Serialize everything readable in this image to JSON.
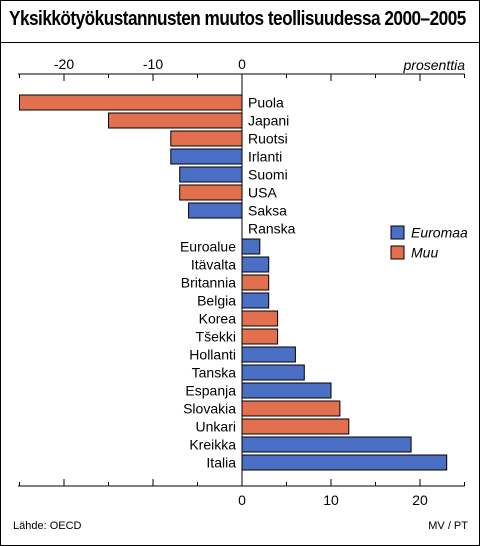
{
  "header": {
    "title": "Yksikkötyökustannusten muutos teollisuudessa 2000–2005"
  },
  "footer": {
    "source": "Lähde: OECD",
    "credit": "MV / PT"
  },
  "colors": {
    "Euromaa": "#4a6fc5",
    "Muu": "#e2704f",
    "grid": "#000000"
  },
  "chart_data": {
    "type": "bar",
    "orientation": "horizontal",
    "unit_label": "prosenttia",
    "xlim": [
      -25,
      25
    ],
    "top_ticks": [
      -20,
      -10,
      0
    ],
    "bottom_ticks": [
      0,
      10,
      20
    ],
    "legend": {
      "placement": "right",
      "entries": [
        "Euromaa",
        "Muu"
      ]
    },
    "categories": [
      "Puola",
      "Japani",
      "Ruotsi",
      "Irlanti",
      "Suomi",
      "USA",
      "Saksa",
      "Ranska",
      "Euroalue",
      "Itävalta",
      "Britannia",
      "Belgia",
      "Korea",
      "Tšekki",
      "Hollanti",
      "Tanska",
      "Espanja",
      "Slovakia",
      "Unkari",
      "Kreikka",
      "Italia"
    ],
    "values": [
      -25,
      -15,
      -8,
      -8,
      -7,
      -7,
      -6,
      0,
      2,
      3,
      3,
      3,
      4,
      4,
      6,
      7,
      10,
      11,
      12,
      19,
      23
    ],
    "groups": [
      "Muu",
      "Muu",
      "Muu",
      "Euromaa",
      "Euromaa",
      "Muu",
      "Euromaa",
      "Euromaa",
      "Euromaa",
      "Euromaa",
      "Muu",
      "Euromaa",
      "Muu",
      "Muu",
      "Euromaa",
      "Euromaa",
      "Euromaa",
      "Muu",
      "Muu",
      "Euromaa",
      "Euromaa"
    ]
  }
}
